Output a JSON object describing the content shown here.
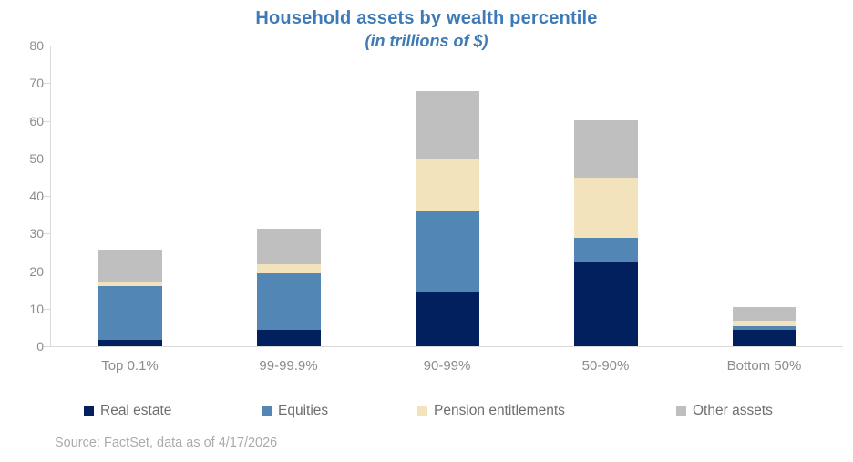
{
  "colors": {
    "title_blue": "#3e7ab8",
    "axis_line": "#d9d9d9",
    "axis_text": "#8c8c8c",
    "legend_text": "#6e6e6e",
    "source_text": "#ababab"
  },
  "source_note": "Source: FactSet, data as of 4/17/2026",
  "chart_data": {
    "type": "bar",
    "stacked": true,
    "title": "Household assets by wealth percentile",
    "subtitle": "(in trillions of $)",
    "categories": [
      "Top 0.1%",
      "99-99.9%",
      "90-99%",
      "50-90%",
      "Bottom 50%"
    ],
    "series": [
      {
        "name": "Real estate",
        "color": "#02205e",
        "values": [
          1.8,
          4.3,
          14.5,
          22.4,
          4.4
        ]
      },
      {
        "name": "Equities",
        "color": "#5286b5",
        "values": [
          14.2,
          15.2,
          21.5,
          6.5,
          1.0
        ]
      },
      {
        "name": "Pension entitlements",
        "color": "#f3e3bc",
        "values": [
          1.0,
          2.3,
          14.0,
          16.0,
          1.5
        ]
      },
      {
        "name": "Other assets",
        "color": "#bfbfbf",
        "values": [
          8.8,
          9.5,
          18.0,
          15.3,
          3.6
        ]
      }
    ],
    "totals": [
      25.8,
      31.3,
      68.0,
      60.2,
      10.5
    ],
    "xlabel": "",
    "ylabel": "",
    "ylim": [
      0,
      80
    ],
    "yticks": [
      0,
      10,
      20,
      30,
      40,
      50,
      60,
      70,
      80
    ],
    "grid": false,
    "legend_position": "bottom"
  }
}
